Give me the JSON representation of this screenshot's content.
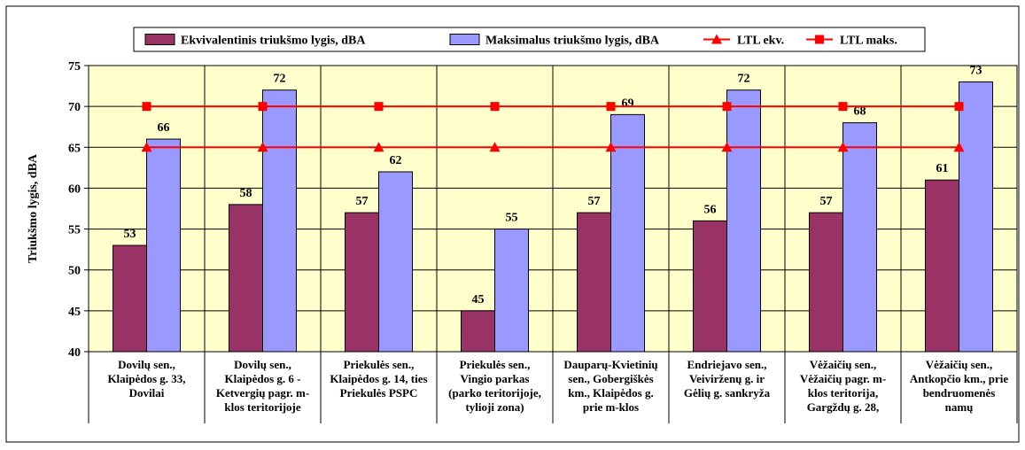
{
  "colors": {
    "plot_bg": "#FFFFCC",
    "bar_ekv": "#993366",
    "bar_maks": "#9999FF",
    "ltl_line": "#FF0000",
    "border": "#000000",
    "grid": "#000000"
  },
  "chart_data": {
    "type": "bar",
    "title": "",
    "xlabel": "",
    "ylabel": "Triukšmo lygis, dBA",
    "ylim": [
      40,
      75
    ],
    "yticks": [
      40,
      45,
      50,
      55,
      60,
      65,
      70,
      75
    ],
    "grid": true,
    "legend_position": "top",
    "categories": [
      [
        "Dovilų sen.,",
        "Klaipėdos g. 33,",
        "Dovilai"
      ],
      [
        "Dovilų sen.,",
        "Klaipėdos g. 6 -",
        "Ketvergių pagr. m-",
        "klos teritorijoje"
      ],
      [
        "Priekulės sen.,",
        "Klaipėdos g. 14, ties",
        "Priekulės PSPC"
      ],
      [
        "Priekulės sen.,",
        "Vingio parkas",
        "(parko teritorijoje,",
        "tylioji zona)"
      ],
      [
        "Dauparų-Kvietinių",
        "sen., Gobergiškės",
        "km., Klaipėdos g.",
        "prie m-klos"
      ],
      [
        "Endriejavo sen.,",
        "Veivirženų g. ir",
        "Gėlių g. sankryža"
      ],
      [
        "Vėžaičių sen.,",
        "Vėžaičių pagr. m-",
        "klos teritorija,",
        "Gargždų g. 28,"
      ],
      [
        "Vėžaičių sen.,",
        "Antkopčio km., prie",
        "bendruomenės",
        "namų"
      ]
    ],
    "series": [
      {
        "name": "Ekvivalentinis triukšmo lygis, dBA",
        "kind": "bar",
        "color": "#993366",
        "values": [
          53,
          58,
          57,
          45,
          57,
          56,
          57,
          61
        ]
      },
      {
        "name": "Maksimalus triukšmo lygis, dBA",
        "kind": "bar",
        "color": "#9999FF",
        "values": [
          66,
          72,
          62,
          55,
          69,
          72,
          68,
          73
        ]
      },
      {
        "name": "LTL ekv.",
        "kind": "line",
        "marker": "triangle",
        "color": "#FF0000",
        "values": [
          65,
          65,
          65,
          65,
          65,
          65,
          65,
          65
        ]
      },
      {
        "name": "LTL maks.",
        "kind": "line",
        "marker": "square",
        "color": "#FF0000",
        "values": [
          70,
          70,
          70,
          70,
          70,
          70,
          70,
          70
        ]
      }
    ]
  }
}
